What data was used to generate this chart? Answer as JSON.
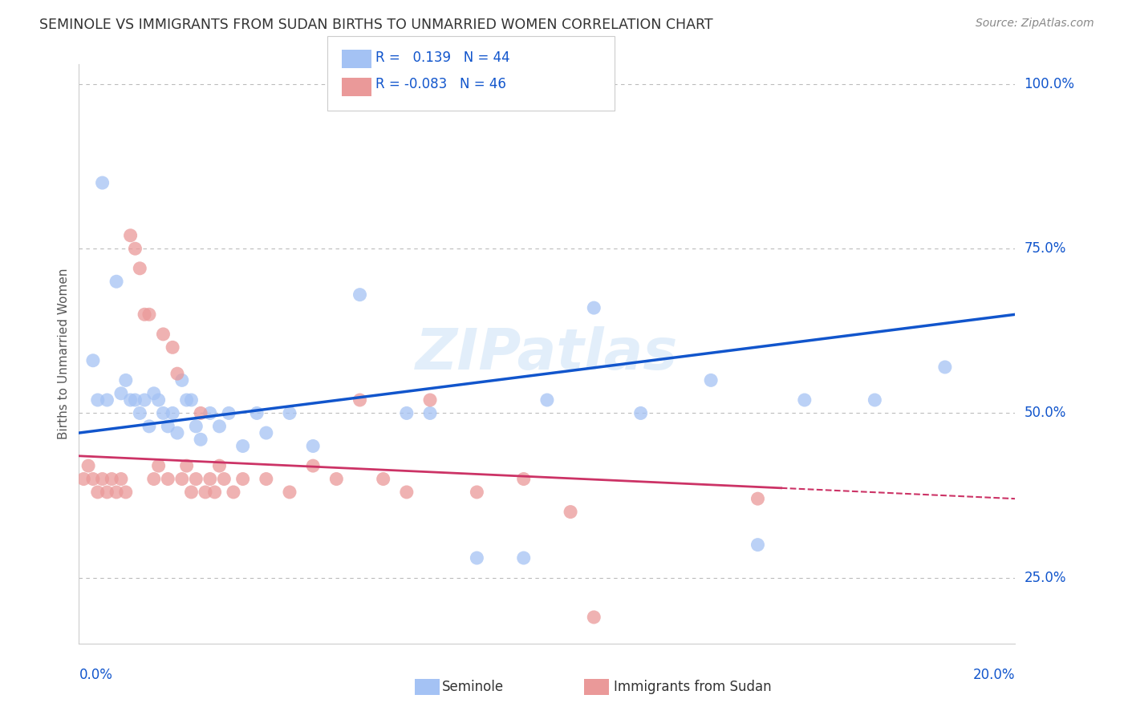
{
  "title": "SEMINOLE VS IMMIGRANTS FROM SUDAN BIRTHS TO UNMARRIED WOMEN CORRELATION CHART",
  "source": "Source: ZipAtlas.com",
  "ylabel": "Births to Unmarried Women",
  "legend_blue_R": "0.139",
  "legend_blue_N": "44",
  "legend_pink_R": "-0.083",
  "legend_pink_N": "46",
  "legend_label_blue": "Seminole",
  "legend_label_pink": "Immigrants from Sudan",
  "blue_color": "#a4c2f4",
  "pink_color": "#ea9999",
  "trend_blue_color": "#1155cc",
  "trend_pink_color": "#cc3366",
  "watermark": "ZIPatlas",
  "xmin": 0.0,
  "xmax": 20.0,
  "ymin": 15.0,
  "ymax": 103.0,
  "blue_trend_x0": 0.0,
  "blue_trend_y0": 47.0,
  "blue_trend_x1": 20.0,
  "blue_trend_y1": 65.0,
  "pink_trend_x0": 0.0,
  "pink_trend_y0": 43.5,
  "pink_trend_x1": 20.0,
  "pink_trend_y1": 37.0,
  "pink_solid_xmax": 15.0,
  "blue_scatter_x": [
    0.5,
    0.8,
    1.0,
    1.2,
    1.3,
    1.5,
    1.6,
    1.8,
    1.9,
    2.0,
    2.1,
    2.2,
    2.4,
    2.5,
    2.6,
    2.8,
    3.0,
    3.2,
    3.5,
    4.0,
    4.5,
    5.0,
    6.0,
    7.0,
    7.5,
    8.5,
    9.5,
    10.0,
    11.0,
    12.0,
    13.5,
    14.5,
    15.5,
    17.0,
    0.3,
    0.4,
    0.6,
    0.9,
    1.1,
    1.4,
    1.7,
    2.3,
    3.8,
    18.5
  ],
  "blue_scatter_y": [
    85,
    70,
    55,
    52,
    50,
    48,
    53,
    50,
    48,
    50,
    47,
    55,
    52,
    48,
    46,
    50,
    48,
    50,
    45,
    47,
    50,
    45,
    68,
    50,
    50,
    28,
    28,
    52,
    66,
    50,
    55,
    30,
    52,
    52,
    58,
    52,
    52,
    53,
    52,
    52,
    52,
    52,
    50,
    57
  ],
  "pink_scatter_x": [
    0.1,
    0.2,
    0.3,
    0.4,
    0.5,
    0.6,
    0.7,
    0.8,
    0.9,
    1.0,
    1.1,
    1.2,
    1.3,
    1.4,
    1.5,
    1.6,
    1.7,
    1.8,
    1.9,
    2.0,
    2.1,
    2.2,
    2.3,
    2.4,
    2.5,
    2.6,
    2.7,
    2.8,
    2.9,
    3.0,
    3.1,
    3.3,
    3.5,
    4.0,
    4.5,
    5.0,
    5.5,
    6.0,
    6.5,
    7.0,
    7.5,
    8.5,
    9.5,
    10.5,
    14.5,
    11.0
  ],
  "pink_scatter_y": [
    40,
    42,
    40,
    38,
    40,
    38,
    40,
    38,
    40,
    38,
    77,
    75,
    72,
    65,
    65,
    40,
    42,
    62,
    40,
    60,
    56,
    40,
    42,
    38,
    40,
    50,
    38,
    40,
    38,
    42,
    40,
    38,
    40,
    40,
    38,
    42,
    40,
    52,
    40,
    38,
    52,
    38,
    40,
    35,
    37,
    19
  ]
}
